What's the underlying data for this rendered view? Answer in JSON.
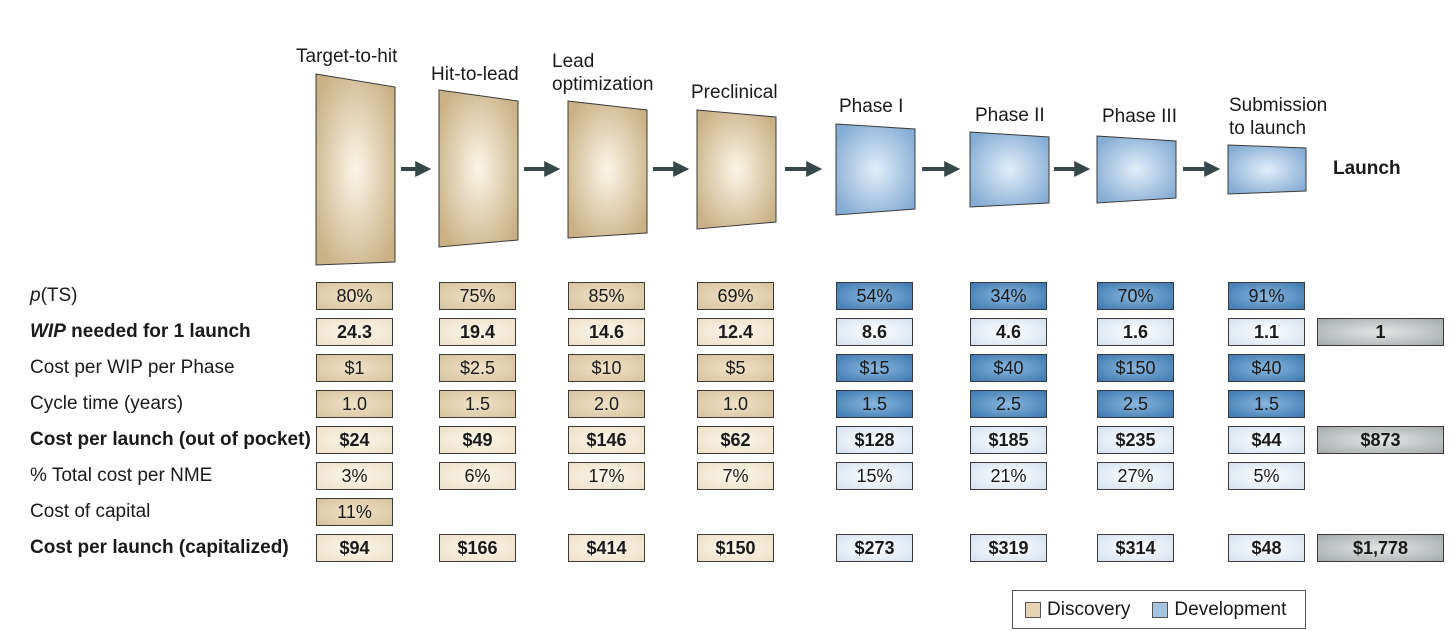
{
  "stages": [
    {
      "label": "Target-to-hit",
      "group": "discovery"
    },
    {
      "label": "Hit-to-lead",
      "group": "discovery"
    },
    {
      "label": "Lead\noptimization",
      "group": "discovery"
    },
    {
      "label": "Preclinical",
      "group": "discovery"
    },
    {
      "label": "Phase I",
      "group": "development"
    },
    {
      "label": "Phase II",
      "group": "development"
    },
    {
      "label": "Phase III",
      "group": "development"
    },
    {
      "label": "Submission\nto launch",
      "group": "development"
    }
  ],
  "launch_label": "Launch",
  "rows": [
    {
      "label_italic": "p",
      "label": "(TS)",
      "bold": false,
      "shade": "strong",
      "values": [
        "80%",
        "75%",
        "85%",
        "69%",
        "54%",
        "34%",
        "70%",
        "91%"
      ],
      "total": ""
    },
    {
      "label_italic": "WIP",
      "label": " needed for 1 launch",
      "bold": true,
      "shade": "light",
      "values": [
        "24.3",
        "19.4",
        "14.6",
        "12.4",
        "8.6",
        "4.6",
        "1.6",
        "1.1"
      ],
      "total": "1"
    },
    {
      "label": "Cost per WIP per Phase",
      "bold": false,
      "shade": "strong",
      "values": [
        "$1",
        "$2.5",
        "$10",
        "$5",
        "$15",
        "$40",
        "$150",
        "$40"
      ],
      "total": ""
    },
    {
      "label": "Cycle time (years)",
      "bold": false,
      "shade": "strong",
      "values": [
        "1.0",
        "1.5",
        "2.0",
        "1.0",
        "1.5",
        "2.5",
        "2.5",
        "1.5"
      ],
      "total": ""
    },
    {
      "label": "Cost per launch (out of pocket)",
      "bold": true,
      "shade": "light",
      "values": [
        "$24",
        "$49",
        "$146",
        "$62",
        "$128",
        "$185",
        "$235",
        "$44"
      ],
      "total": "$873"
    },
    {
      "label": "% Total cost per NME",
      "bold": false,
      "shade": "light",
      "values": [
        "3%",
        "6%",
        "17%",
        "7%",
        "15%",
        "21%",
        "27%",
        "5%"
      ],
      "total": ""
    },
    {
      "label": "Cost of capital",
      "bold": false,
      "shade": "strong",
      "values": [
        "11%",
        "",
        "",
        "",
        "",
        "",
        "",
        ""
      ],
      "total": ""
    },
    {
      "label": "Cost per launch (capitalized)",
      "bold": true,
      "shade": "light",
      "values": [
        "$94",
        "$166",
        "$414",
        "$150",
        "$273",
        "$319",
        "$314",
        "$48"
      ],
      "total": "$1,778"
    }
  ],
  "legend": [
    {
      "label": "Discovery",
      "color": "#e4d3b1"
    },
    {
      "label": "Development",
      "color": "#a6c4e2"
    }
  ],
  "colors": {
    "discovery": "#d6c29d",
    "development": "#6fa0cf",
    "arrow": "#37474a"
  }
}
